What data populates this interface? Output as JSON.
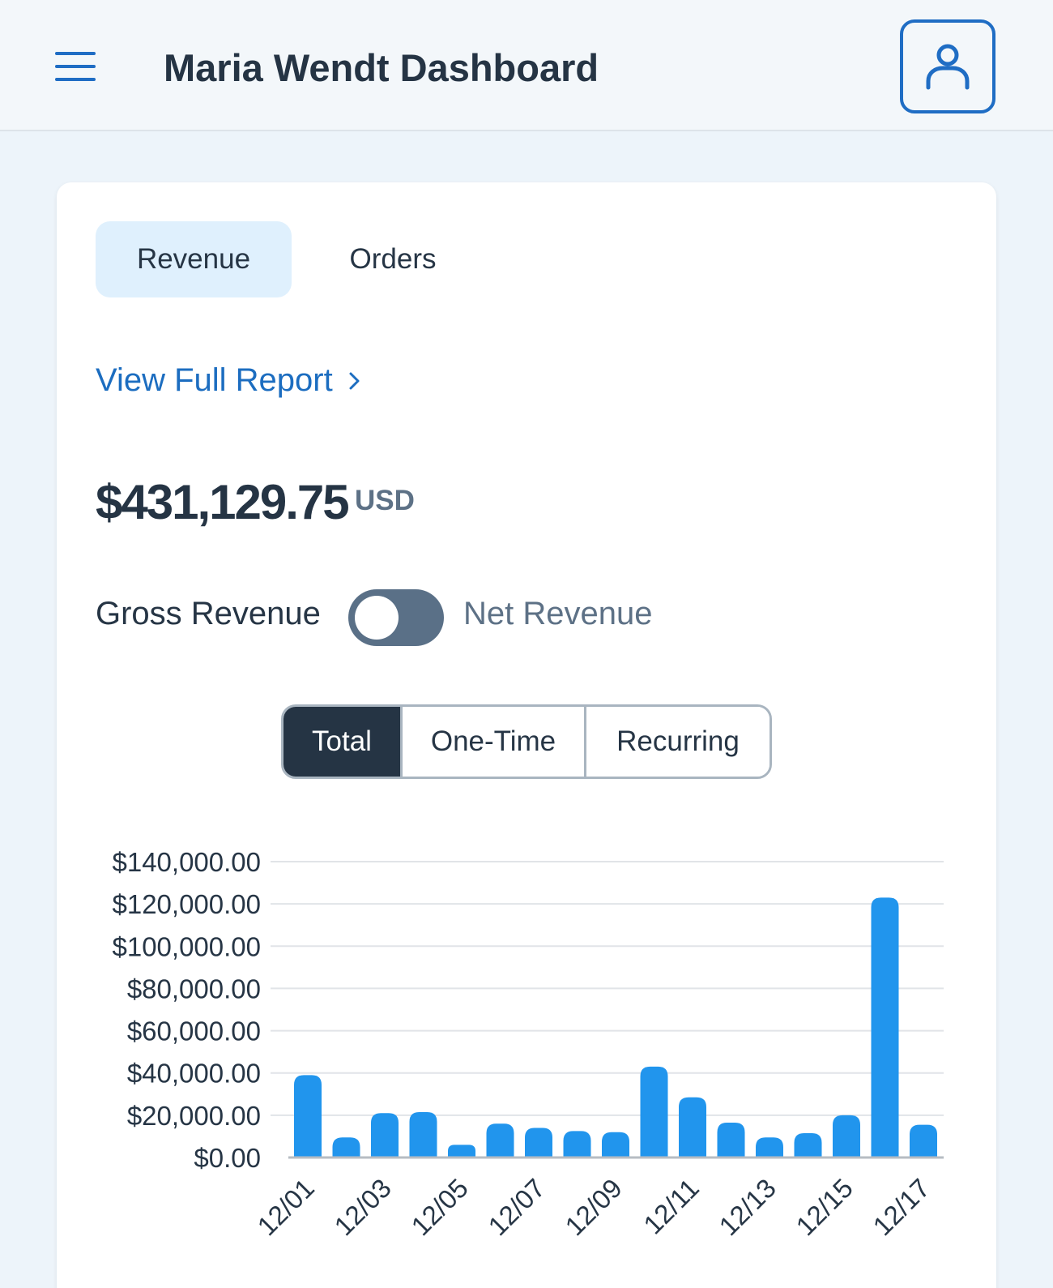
{
  "header": {
    "title": "Maria Wendt Dashboard"
  },
  "tabs": [
    {
      "label": "Revenue",
      "active": true
    },
    {
      "label": "Orders",
      "active": false
    }
  ],
  "report_link": "View Full Report",
  "total": {
    "amount": "$431,129.75",
    "currency": "USD"
  },
  "revenue_toggle": {
    "left_label": "Gross Revenue",
    "right_label": "Net Revenue",
    "on": false
  },
  "segments": [
    {
      "label": "Total",
      "active": true
    },
    {
      "label": "One-Time",
      "active": false
    },
    {
      "label": "Recurring",
      "active": false
    }
  ],
  "colors": {
    "accent": "#1f6dc4",
    "bar": "#2195ed",
    "dark": "#253444"
  },
  "chart_data": {
    "type": "bar",
    "categories": [
      "12/01",
      "12/02",
      "12/03",
      "12/04",
      "12/05",
      "12/06",
      "12/07",
      "12/08",
      "12/09",
      "12/10",
      "12/11",
      "12/12",
      "12/13",
      "12/14",
      "12/15",
      "12/16",
      "12/17"
    ],
    "values": [
      39000,
      9500,
      21000,
      21500,
      6000,
      16000,
      14000,
      12500,
      12000,
      43000,
      28500,
      16500,
      9500,
      11500,
      20000,
      123000,
      15500
    ],
    "yticks": [
      0,
      20000,
      40000,
      60000,
      80000,
      100000,
      120000,
      140000
    ],
    "ytick_labels": [
      "$0.00",
      "$20,000.00",
      "$40,000.00",
      "$60,000.00",
      "$80,000.00",
      "$100,000.00",
      "$120,000.00",
      "$140,000.00"
    ],
    "xtick_labels": [
      "12/01",
      "12/03",
      "12/05",
      "12/07",
      "12/09",
      "12/11",
      "12/13",
      "12/15",
      "12/17"
    ],
    "ylim": [
      0,
      140000
    ],
    "grid": true
  }
}
